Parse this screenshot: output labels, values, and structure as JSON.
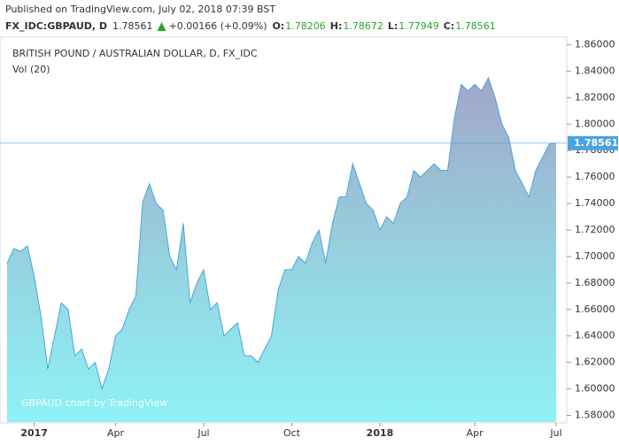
{
  "header": {
    "published": "Published on TradingView.com, July 02, 2018 07:39 BST",
    "symbol": "FX_IDC:GBPAUD, D",
    "last": "1.78561",
    "change": "+0.00166 (+0.09%)",
    "ohlc": [
      {
        "label": "O:",
        "value": "1.78206"
      },
      {
        "label": "H:",
        "value": "1.78672"
      },
      {
        "label": "L:",
        "value": "1.77949"
      },
      {
        "label": "C:",
        "value": "1.78561"
      }
    ]
  },
  "chart_data": {
    "type": "area",
    "title": "BRITISH POUND / AUSTRALIAN DOLLAR, D, FX_IDC",
    "study": "Vol (20)",
    "watermark": "GBPAUD chart by TradingView",
    "color": "#4aa3df",
    "categories": [
      null,
      null,
      null,
      null,
      "2017",
      null,
      null,
      null,
      null,
      null,
      null,
      null,
      null,
      null,
      null,
      null,
      "Apr",
      null,
      null,
      null,
      null,
      null,
      null,
      null,
      null,
      null,
      null,
      null,
      null,
      "Jul",
      null,
      null,
      null,
      null,
      null,
      null,
      null,
      null,
      null,
      null,
      null,
      null,
      "Oct",
      null,
      null,
      null,
      null,
      null,
      null,
      null,
      null,
      null,
      null,
      null,
      null,
      "2018",
      null,
      null,
      null,
      null,
      null,
      null,
      null,
      null,
      null,
      null,
      null,
      null,
      null,
      "Apr",
      null,
      null,
      null,
      null,
      null,
      null,
      null,
      null,
      null,
      null,
      null,
      "Jul"
    ],
    "values": [
      1.695,
      1.706,
      1.704,
      1.708,
      1.685,
      1.655,
      1.615,
      1.64,
      1.665,
      1.66,
      1.625,
      1.63,
      1.615,
      1.62,
      1.6,
      1.615,
      1.64,
      1.645,
      1.66,
      1.67,
      1.741,
      1.755,
      1.74,
      1.735,
      1.7,
      1.69,
      1.725,
      1.665,
      1.68,
      1.69,
      1.66,
      1.665,
      1.64,
      1.645,
      1.65,
      1.625,
      1.625,
      1.62,
      1.63,
      1.64,
      1.675,
      1.69,
      1.69,
      1.7,
      1.695,
      1.71,
      1.72,
      1.695,
      1.725,
      1.745,
      1.745,
      1.77,
      1.755,
      1.74,
      1.735,
      1.72,
      1.73,
      1.725,
      1.74,
      1.745,
      1.765,
      1.76,
      1.765,
      1.77,
      1.765,
      1.765,
      1.805,
      1.83,
      1.825,
      1.83,
      1.825,
      1.835,
      1.82,
      1.8,
      1.79,
      1.765,
      1.755,
      1.745,
      1.765,
      1.775,
      1.785,
      1.78561
    ],
    "last_value": 1.78561,
    "ylim": [
      1.575,
      1.865
    ],
    "yticks": [
      {
        "value": 1.58,
        "label": "1.58000"
      },
      {
        "value": 1.6,
        "label": "1.60000"
      },
      {
        "value": 1.62,
        "label": "1.62000"
      },
      {
        "value": 1.64,
        "label": "1.64000"
      },
      {
        "value": 1.66,
        "label": "1.66000"
      },
      {
        "value": 1.68,
        "label": "1.68000"
      },
      {
        "value": 1.7,
        "label": "1.70000"
      },
      {
        "value": 1.72,
        "label": "1.72000"
      },
      {
        "value": 1.74,
        "label": "1.74000"
      },
      {
        "value": 1.76,
        "label": "1.76000"
      },
      {
        "value": 1.78,
        "label": "1.78000"
      },
      {
        "value": 1.8,
        "label": "1.80000"
      },
      {
        "value": 1.82,
        "label": "1.82000"
      },
      {
        "value": 1.84,
        "label": "1.84000"
      },
      {
        "value": 1.86,
        "label": "1.86000"
      }
    ]
  }
}
